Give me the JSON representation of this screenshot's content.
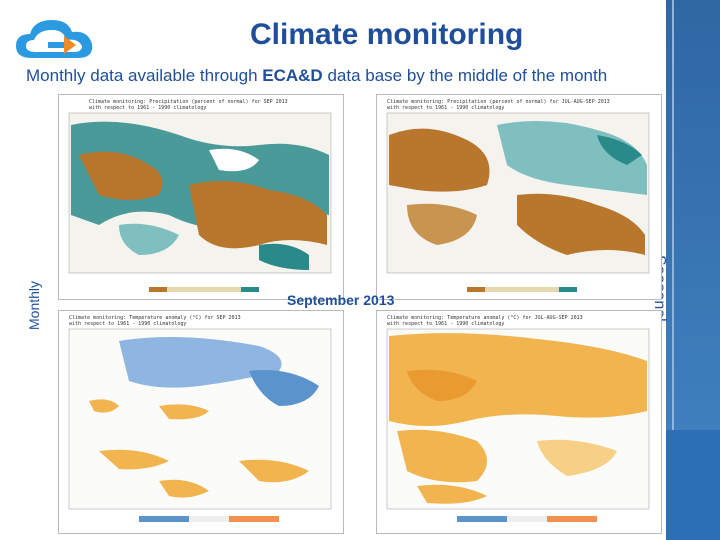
{
  "header": {
    "title": "Climate monitoring",
    "subtitle_pre": "Monthly data available through ",
    "subtitle_bold": "ECA&D",
    "subtitle_post": " data base by the middle of the month"
  },
  "labels": {
    "left_vertical": "Monthly",
    "right_vertical": "Seasonal",
    "center": "September 2013"
  },
  "logo": {
    "icon": "cloud-logo-icon",
    "colors": [
      "#2b9ae0",
      "#f08a24"
    ]
  },
  "maps": [
    {
      "id": "precip-monthly",
      "title_line1": "Climate monitoring: Precipitation (percent of normal) for SEP 2013",
      "title_line2": "with respect to 1961 - 1990 climatology",
      "scale": [
        "50",
        "75",
        "100",
        "125",
        "150",
        "200"
      ]
    },
    {
      "id": "precip-seasonal",
      "title_line1": "Climate monitoring: Precipitation (percent of normal) for JUL-AUG-SEP 2013",
      "title_line2": "with respect to 1961 - 1990 climatology",
      "scale": [
        "50",
        "75",
        "100",
        "125",
        "150",
        "200"
      ]
    },
    {
      "id": "temp-monthly",
      "title_line1": "Climate monitoring: Temperature anomaly (°C) for SEP 2013",
      "title_line2": "with respect to 1961 - 1990 climatology",
      "scale": [
        "-5",
        "-4",
        "-3",
        "-2",
        "-1",
        "1",
        "2",
        "3",
        "4",
        "5"
      ]
    },
    {
      "id": "temp-seasonal",
      "title_line1": "Climate monitoring: Temperature anomaly (°C) for JUL-AUG-SEP 2013",
      "title_line2": "with respect to 1961 - 1990 climatology",
      "scale": [
        "-5",
        "-4",
        "-3",
        "-2",
        "-1",
        "1",
        "2",
        "3",
        "4",
        "5"
      ]
    }
  ],
  "colors": {
    "title": "#1f4f9a",
    "sidebar": "#3f7fbe",
    "precip_dry": "#b9772e",
    "precip_wet": "#2a8a8a",
    "temp_cold": "#5b93cc",
    "temp_warm": "#f2b44f"
  }
}
